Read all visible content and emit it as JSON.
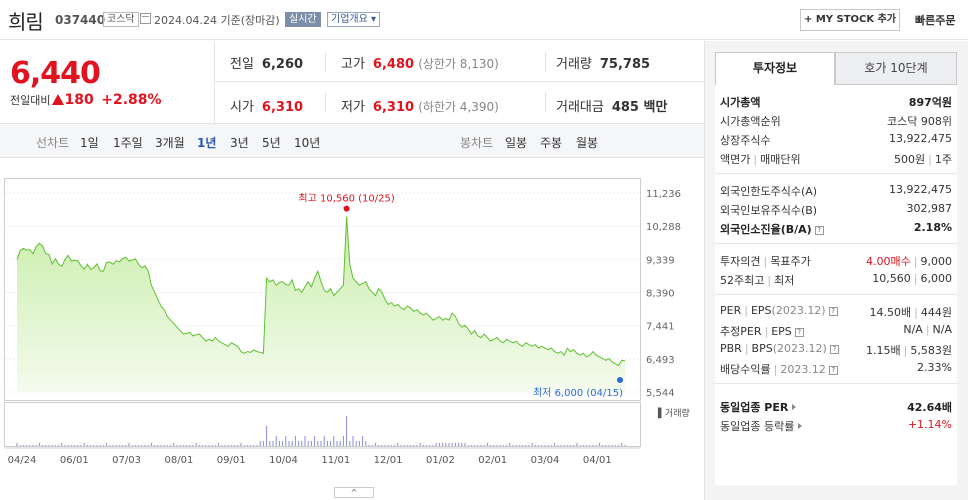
{
  "header": {
    "name": "희림",
    "code": "037440",
    "market": "코스닥",
    "date": "2024.04.24 기준(장마감)",
    "realtime": "실시간",
    "company_info": "기업개요",
    "my_stock": "+ MY STOCK 추가",
    "quick_order": "빠른주문"
  },
  "price": {
    "current": "6,440",
    "change_label": "전일대비",
    "change": "180",
    "change_pct": "+2.88%"
  },
  "summary": {
    "prev_label": "전일",
    "prev": "6,260",
    "high_label": "고가",
    "high": "6,480",
    "upper_limit": "(상한가 8,130)",
    "volume_label": "거래량",
    "volume": "75,785",
    "open_label": "시가",
    "open": "6,310",
    "low_label": "저가",
    "low": "6,310",
    "lower_limit": "(하한가 4,390)",
    "amount_label": "거래대금",
    "amount": "485 백만"
  },
  "period_bar": {
    "line_label": "선차트",
    "periods": [
      "1일",
      "1주일",
      "3개월",
      "1년",
      "3년",
      "5년",
      "10년"
    ],
    "selected": "1년",
    "candle_label": "봉차트",
    "candles": [
      "일봉",
      "주봉",
      "월봉"
    ]
  },
  "chart_data": {
    "type": "area",
    "y_ticks": [
      "11,236",
      "10,288",
      "9,339",
      "8,390",
      "7,441",
      "6,493",
      "5,544"
    ],
    "x_ticks": [
      "04/24",
      "06/01",
      "07/03",
      "08/01",
      "09/01",
      "10/04",
      "11/01",
      "12/01",
      "01/02",
      "02/01",
      "03/04",
      "04/01"
    ],
    "ylim": [
      5544,
      11236
    ],
    "high_label": "최고 10,560 (10/25)",
    "low_label": "최저 6,000 (04/15)",
    "high_value": 10560,
    "low_value": 6000,
    "volume_label": "거래량",
    "values": [
      9330,
      9590,
      9650,
      9600,
      9620,
      9500,
      9700,
      9800,
      9720,
      9500,
      9480,
      9200,
      9360,
      9200,
      9140,
      9340,
      9450,
      9290,
      9310,
      9300,
      9150,
      9060,
      9200,
      9050,
      9100,
      9210,
      9010,
      9000,
      9250,
      9260,
      9200,
      9300,
      9270,
      9360,
      9400,
      9290,
      9320,
      9350,
      9200,
      9100,
      9150,
      9000,
      8600,
      8400,
      8200,
      8000,
      7900,
      7700,
      7600,
      7500,
      7400,
      7300,
      7200,
      7220,
      7250,
      7150,
      7180,
      7200,
      7100,
      7000,
      7050,
      7000,
      7100,
      7000,
      6950,
      6900,
      6850,
      6950,
      6900,
      6850,
      6700,
      6650,
      6700,
      6680,
      6750,
      6700,
      6680,
      6650,
      8800,
      8700,
      8750,
      8600,
      8680,
      8700,
      8620,
      8600,
      8750,
      8450,
      8500,
      8400,
      8550,
      8700,
      8550,
      8800,
      9000,
      8700,
      8450,
      8400,
      8500,
      8300,
      8400,
      8500,
      8600,
      10560,
      9200,
      8800,
      8700,
      8600,
      8650,
      8700,
      8500,
      8400,
      8300,
      8500,
      8400,
      8200,
      8050,
      8100,
      8000,
      8050,
      7950,
      7900,
      8000,
      7950,
      7850,
      7900,
      7800,
      7750,
      7800,
      7700,
      7600,
      7650,
      7700,
      7600,
      7650,
      7600,
      7800,
      7700,
      7500,
      7400,
      7450,
      7350,
      7200,
      7300,
      7150,
      7100,
      7200,
      7100,
      7000,
      7050,
      7100,
      7000,
      6950,
      7050,
      7000,
      6950,
      7000,
      6900,
      6850,
      6950,
      6900,
      6850,
      6900,
      6800,
      6850,
      6800,
      6750,
      6800,
      6700,
      6650,
      6700,
      6600,
      6800,
      6700,
      6750,
      6650,
      6600,
      6650,
      6550,
      6600,
      6700,
      6600,
      6550,
      6500,
      6450,
      6500,
      6400,
      6350,
      6300,
      6450,
      6440
    ]
  },
  "right_panel": {
    "tab_info": "투자정보",
    "tab_quote": "호가 10단계",
    "rows": {
      "mcap_l": "시가총액",
      "mcap_v": "897억원",
      "rank_l": "시가총액순위",
      "rank_v": "코스닥 908위",
      "shares_l": "상장주식수",
      "shares_v": "13,922,475",
      "face_l": "액면가",
      "unit_l": "매매단위",
      "face_v": "500원",
      "unit_v": "1주",
      "flimit_l": "외국인한도주식수(A)",
      "flimit_v": "13,922,475",
      "fhold_l": "외국인보유주식수(B)",
      "fhold_v": "302,987",
      "fratio_l": "외국인소진율(B/A)",
      "fratio_v": "2.18%",
      "opinion_l": "투자의견",
      "target_l": "목표주가",
      "opinion_v": "4.00매수",
      "target_v": "9,000",
      "w52_l": "52주최고",
      "w52low_l": "최저",
      "w52_v": "10,560",
      "w52low_v": "6,000",
      "per_l": "PER",
      "eps_l": "EPS",
      "eps_y": "(2023.12)",
      "per_v": "14.50배",
      "eps_v": "444원",
      "eper_l": "추정PER",
      "eeps_l": "EPS",
      "eper_v": "N/A",
      "eeps_v": "N/A",
      "pbr_l": "PBR",
      "bps_l": "BPS",
      "bps_y": "(2023.12)",
      "pbr_v": "1.15배",
      "bps_v": "5,583원",
      "div_l": "배당수익률",
      "div_y": "2023.12",
      "div_v": "2.33%",
      "iper_l": "동일업종 PER",
      "iper_v": "42.64배",
      "irate_l": "동일업종 등락률",
      "irate_v": "+1.14%"
    }
  }
}
